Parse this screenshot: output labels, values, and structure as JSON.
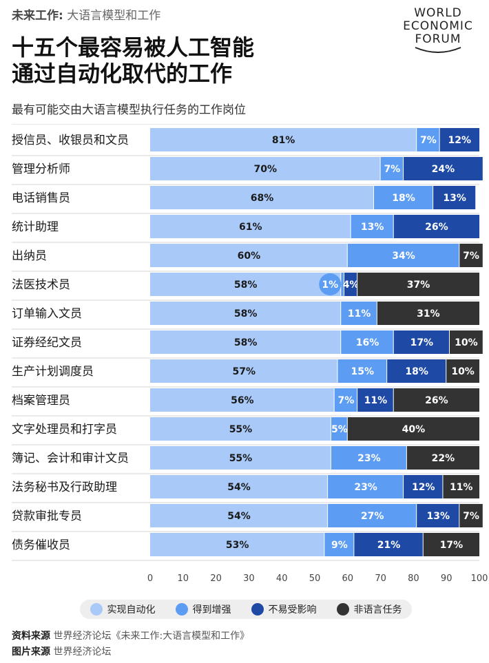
{
  "header": {
    "series_label": "未来工作:",
    "series_name": "大语言模型和工作",
    "title_line1": "十五个最容易被人工智能",
    "title_line2": "通过自动化取代的工作",
    "subtitle": "最有可能交由大语言模型执行任务的工作岗位"
  },
  "logo": {
    "line1": "WORLD",
    "line2": "ECONOMIC",
    "line3": "FORUM"
  },
  "footer": {
    "data_source_label": "资料来源",
    "data_source_text": "世界经济论坛《未来工作:大语言模型和工作》",
    "image_source_label": "图片来源",
    "image_source_text": "世界经济论坛"
  },
  "chart_data": {
    "type": "bar",
    "orientation": "horizontal",
    "stacked": true,
    "xlim": [
      0,
      100
    ],
    "xticks": [
      0,
      10,
      20,
      30,
      40,
      50,
      60,
      70,
      80,
      90,
      100
    ],
    "legend_position": "bottom",
    "categories": [
      "授信员、收银员和文员",
      "管理分析师",
      "电话销售员",
      "统计助理",
      "出纳员",
      "法医技术员",
      "订单输入文员",
      "证券经纪文员",
      "生产计划调度员",
      "档案管理员",
      "文字处理员和打字员",
      "簿记、会计和审计文员",
      "法务秘书及行政助理",
      "贷款审批专员",
      "债务催收员"
    ],
    "series": [
      {
        "name": "实现自动化",
        "color": "#a9c9f8",
        "values": [
          81,
          70,
          68,
          61,
          60,
          58,
          58,
          58,
          57,
          56,
          55,
          55,
          54,
          54,
          53
        ]
      },
      {
        "name": "得到增强",
        "color": "#5c9cf2",
        "values": [
          7,
          7,
          18,
          13,
          34,
          1,
          11,
          16,
          15,
          7,
          5,
          23,
          23,
          27,
          9
        ]
      },
      {
        "name": "不易受影响",
        "color": "#1e4aa6",
        "values": [
          12,
          24,
          13,
          26,
          0,
          4,
          0,
          17,
          18,
          11,
          0,
          0,
          12,
          13,
          21
        ]
      },
      {
        "name": "非语言任务",
        "color": "#333333",
        "values": [
          0,
          0,
          0,
          0,
          7,
          37,
          31,
          10,
          10,
          26,
          40,
          22,
          11,
          7,
          17
        ]
      }
    ]
  }
}
